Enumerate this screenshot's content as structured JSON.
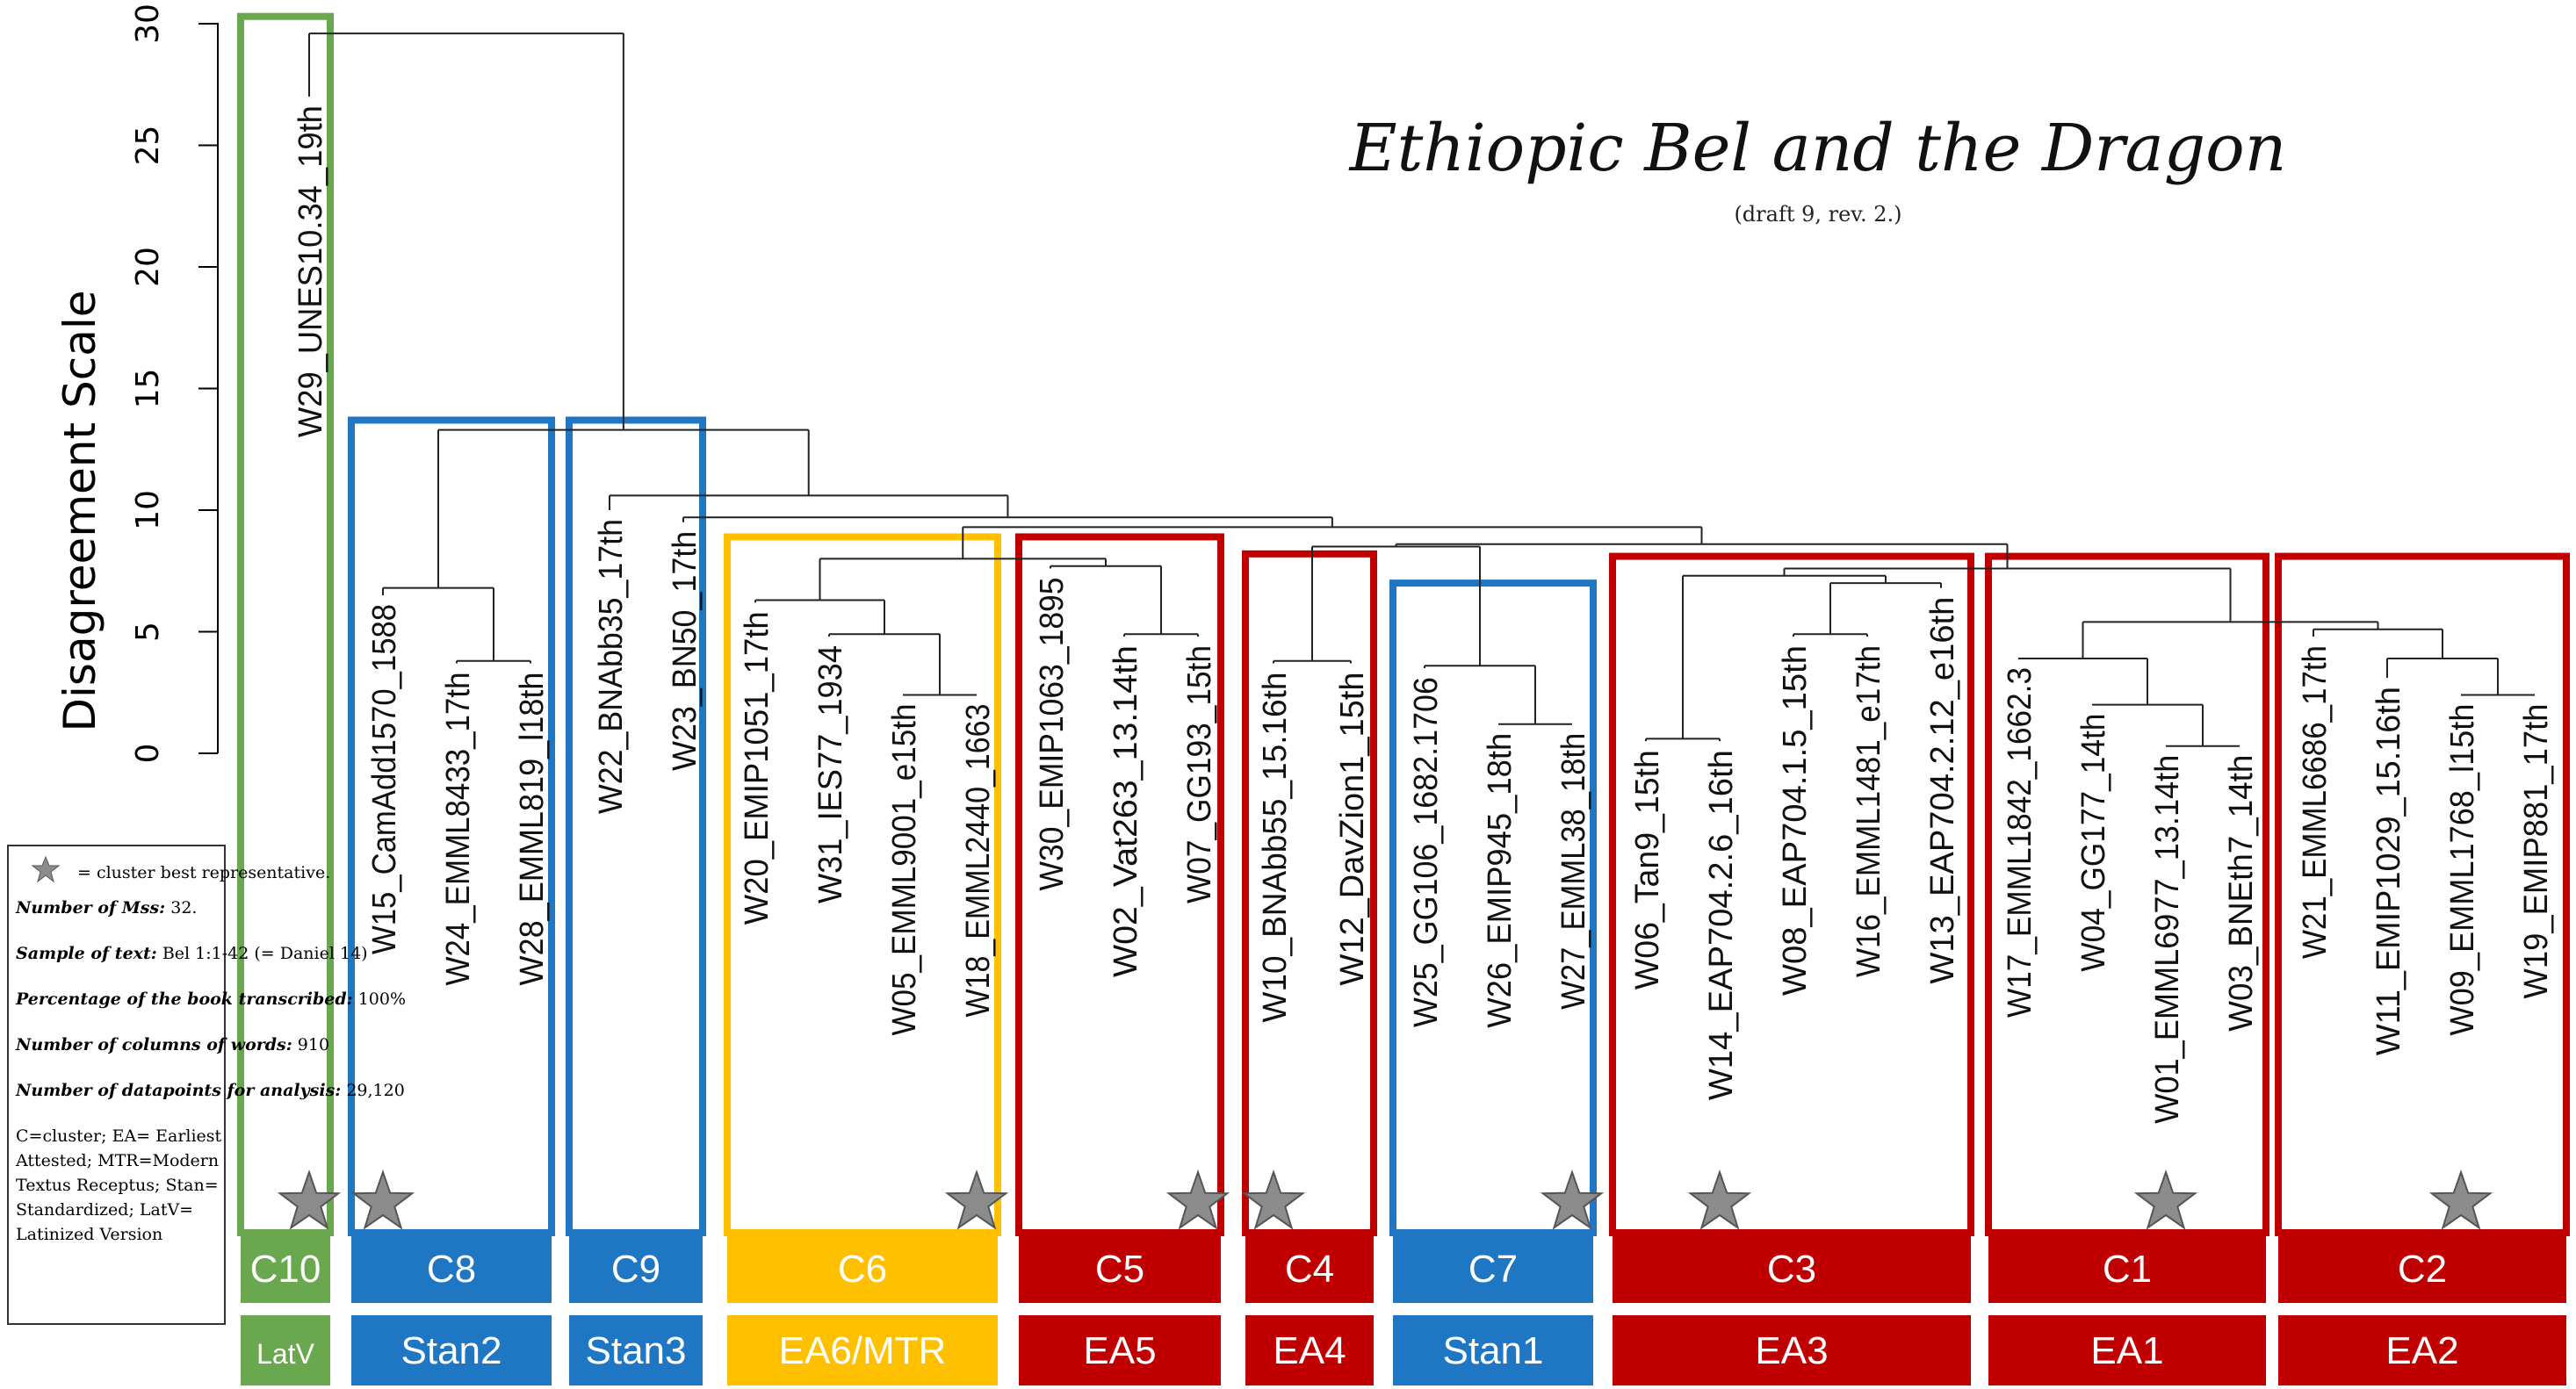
{
  "title": "Ethiopic Bel and the Dragon",
  "subtitle": "(draft 9, rev. 2.)",
  "y_axis": {
    "label": "Disagreement Scale",
    "ticks": [
      0,
      5,
      10,
      15,
      20,
      25,
      30
    ],
    "range": [
      0,
      30
    ]
  },
  "leaves": [
    {
      "id": "w29",
      "label": "W29_UNES10.34_19th",
      "height": 27
    },
    {
      "id": "w15",
      "label": "W15_CamAdd1570_1588",
      "height": 6.5
    },
    {
      "id": "w24",
      "label": "W24_EMML8433_17th",
      "height": 3.7
    },
    {
      "id": "w28",
      "label": "W28_EMML819_l18th",
      "height": 3.7
    },
    {
      "id": "w22",
      "label": "W22_BNAbb35_17th",
      "height": 10
    },
    {
      "id": "w23",
      "label": "W23_BN50_17th",
      "height": 9.5
    },
    {
      "id": "w20",
      "label": "W20_EMIP1051_17th",
      "height": 6.2
    },
    {
      "id": "w31",
      "label": "W31_IES77_1934",
      "height": 4.8
    },
    {
      "id": "w05",
      "label": "W05_EMML9001_e15th",
      "height": 2.4
    },
    {
      "id": "w18",
      "label": "W18_EMML2440_1663",
      "height": 2.4
    },
    {
      "id": "w30",
      "label": "W30_EMIP1063_1895",
      "height": 7.6
    },
    {
      "id": "w02",
      "label": "W02_Vat263_13.14th",
      "height": 4.8
    },
    {
      "id": "w07",
      "label": "W07_GG193_15th",
      "height": 4.8
    },
    {
      "id": "w10",
      "label": "W10_BNAbb55_15.16th",
      "height": 3.7
    },
    {
      "id": "w12",
      "label": "W12_DavZion1_15th",
      "height": 3.7
    },
    {
      "id": "w25",
      "label": "W25_GG106_1682.1706",
      "height": 3.5
    },
    {
      "id": "w26",
      "label": "W26_EMIP945_18th",
      "height": 1.2
    },
    {
      "id": "w27",
      "label": "W27_EMML38_18th",
      "height": 1.2
    },
    {
      "id": "w06",
      "label": "W06_Tan9_15th",
      "height": 0.5
    },
    {
      "id": "w14",
      "label": "W14_EAP704.2.6_16th",
      "height": 0.5
    },
    {
      "id": "w08",
      "label": "W08_EAP704.1.5_15th",
      "height": 4.8
    },
    {
      "id": "w16",
      "label": "W16_EMML1481_e17th",
      "height": 4.8
    },
    {
      "id": "w13",
      "label": "W13_EAP704.2.12_e16th",
      "height": 6.8
    },
    {
      "id": "w17",
      "label": "W17_EMML1842_1662.3",
      "height": 3.9
    },
    {
      "id": "w04",
      "label": "W04_GG177_14th",
      "height": 2.0
    },
    {
      "id": "w01",
      "label": "W01_EMML6977_13.14th",
      "height": 0.3
    },
    {
      "id": "w03",
      "label": "W03_BNEth7_14th",
      "height": 0.3
    },
    {
      "id": "w21",
      "label": "W21_EMML6686_17th",
      "height": 4.8
    },
    {
      "id": "w11",
      "label": "W11_EMIP1029_15.16th",
      "height": 3.1
    },
    {
      "id": "w09",
      "label": "W09_EMML1768_l15th",
      "height": 2.4
    },
    {
      "id": "w19",
      "label": "W19_EMIP881_17th",
      "height": 2.4
    }
  ],
  "merges": [
    {
      "id": "m_24_28",
      "children": [
        "w24",
        "w28"
      ],
      "height": 3.8
    },
    {
      "id": "m_c8",
      "children": [
        "w15",
        "m_24_28"
      ],
      "height": 6.8
    },
    {
      "id": "m_05_18",
      "children": [
        "w05",
        "w18"
      ],
      "height": 2.4
    },
    {
      "id": "m_31",
      "children": [
        "w31",
        "m_05_18"
      ],
      "height": 4.9
    },
    {
      "id": "m_20",
      "children": [
        "w20",
        "m_31"
      ],
      "height": 6.3
    },
    {
      "id": "m_02_07",
      "children": [
        "w02",
        "w07"
      ],
      "height": 4.9
    },
    {
      "id": "m_c5",
      "children": [
        "w30",
        "m_02_07"
      ],
      "height": 7.7
    },
    {
      "id": "m_c6c5",
      "children": [
        "m_20",
        "m_c5"
      ],
      "height": 8.0
    },
    {
      "id": "m_c4",
      "children": [
        "w10",
        "w12"
      ],
      "height": 3.8
    },
    {
      "id": "m_26_27",
      "children": [
        "w26",
        "w27"
      ],
      "height": 1.2
    },
    {
      "id": "m_c7",
      "children": [
        "w25",
        "m_26_27"
      ],
      "height": 3.6
    },
    {
      "id": "m_c4c7",
      "children": [
        "m_c4",
        "m_c7"
      ],
      "height": 8.5
    },
    {
      "id": "m_06_14",
      "children": [
        "w06",
        "w14"
      ],
      "height": 0.6
    },
    {
      "id": "m_08_16",
      "children": [
        "w08",
        "w16"
      ],
      "height": 4.9
    },
    {
      "id": "m_13",
      "children": [
        "m_08_16",
        "w13"
      ],
      "height": 7.0
    },
    {
      "id": "m_c3",
      "children": [
        "m_06_14",
        "m_13"
      ],
      "height": 7.3
    },
    {
      "id": "m_01_03",
      "children": [
        "w01",
        "w03"
      ],
      "height": 0.3
    },
    {
      "id": "m_04",
      "children": [
        "w04",
        "m_01_03"
      ],
      "height": 2.0
    },
    {
      "id": "m_c1",
      "children": [
        "w17",
        "m_04"
      ],
      "height": 3.9
    },
    {
      "id": "m_09_19",
      "children": [
        "w09",
        "w19"
      ],
      "height": 2.4
    },
    {
      "id": "m_11",
      "children": [
        "w11",
        "m_09_19"
      ],
      "height": 3.9
    },
    {
      "id": "m_c2",
      "children": [
        "w21",
        "m_11"
      ],
      "height": 5.1
    },
    {
      "id": "m_c1c2",
      "children": [
        "m_c1",
        "m_c2"
      ],
      "height": 5.4
    },
    {
      "id": "m_c3ea",
      "children": [
        "m_c3",
        "m_c1c2"
      ],
      "height": 7.6
    },
    {
      "id": "m_c7ea",
      "children": [
        "m_c4c7",
        "m_c3ea"
      ],
      "height": 8.6
    },
    {
      "id": "m_mid",
      "children": [
        "m_c6c5",
        "m_c7ea"
      ],
      "height": 9.3
    },
    {
      "id": "m_23",
      "children": [
        "w23",
        "m_mid"
      ],
      "height": 9.7
    },
    {
      "id": "m_c9",
      "children": [
        "w22",
        "m_23"
      ],
      "height": 10.6
    },
    {
      "id": "m_c8c9",
      "children": [
        "m_c8",
        "m_c9"
      ],
      "height": 13.3
    },
    {
      "id": "m_root",
      "children": [
        "w29",
        "m_c8c9"
      ],
      "height": 29.6
    }
  ],
  "clusters": [
    {
      "id": "C10",
      "cluster_label": "C10",
      "group_label": "LatV",
      "color": "#6aa84f",
      "leaves": [
        "w29"
      ],
      "star_leaf": "w29",
      "box_top": 30.3
    },
    {
      "id": "C8",
      "cluster_label": "C8",
      "group_label": "Stan2",
      "color": "#1f77c4",
      "leaves": [
        "w15",
        "w24",
        "w28"
      ],
      "star_leaf": "w15",
      "box_top": 13.7
    },
    {
      "id": "C9",
      "cluster_label": "C9",
      "group_label": "Stan3",
      "color": "#1f77c4",
      "leaves": [
        "w22",
        "w23"
      ],
      "star_leaf": null,
      "box_top": 13.7
    },
    {
      "id": "C6",
      "cluster_label": "C6",
      "group_label": "EA6/MTR",
      "color": "#ffc000",
      "leaves": [
        "w20",
        "w31",
        "w05",
        "w18"
      ],
      "star_leaf": "w18",
      "box_top": 8.9
    },
    {
      "id": "C5",
      "cluster_label": "C5",
      "group_label": "EA5",
      "color": "#c00000",
      "leaves": [
        "w30",
        "w02",
        "w07"
      ],
      "star_leaf": "w07",
      "box_top": 8.9
    },
    {
      "id": "C4",
      "cluster_label": "C4",
      "group_label": "EA4",
      "color": "#c00000",
      "leaves": [
        "w10",
        "w12"
      ],
      "star_leaf": "w10",
      "box_top": 8.2
    },
    {
      "id": "C7",
      "cluster_label": "C7",
      "group_label": "Stan1",
      "color": "#1f77c4",
      "leaves": [
        "w25",
        "w26",
        "w27"
      ],
      "star_leaf": "w27",
      "box_top": 7.0
    },
    {
      "id": "C3",
      "cluster_label": "C3",
      "group_label": "EA3",
      "color": "#c00000",
      "leaves": [
        "w06",
        "w14",
        "w08",
        "w16",
        "w13"
      ],
      "star_leaf": "w14",
      "box_top": 8.1
    },
    {
      "id": "C1",
      "cluster_label": "C1",
      "group_label": "EA1",
      "color": "#c00000",
      "leaves": [
        "w17",
        "w04",
        "w01",
        "w03"
      ],
      "star_leaf": "w01",
      "box_top": 8.1
    },
    {
      "id": "C2",
      "cluster_label": "C2",
      "group_label": "EA2",
      "color": "#c00000",
      "leaves": [
        "w21",
        "w11",
        "w09",
        "w19"
      ],
      "star_leaf": "w09",
      "box_top": 8.1
    }
  ],
  "notes": {
    "star_meaning": "= cluster best representative.",
    "lines": [
      {
        "key": "Number of Mss:",
        "value": "32."
      },
      {
        "key": "Sample of text:",
        "value": "Bel 1:1-42 (= Daniel 14)"
      },
      {
        "key": "Percentage of the book transcribed:",
        "value": "100%"
      },
      {
        "key": "Number of columns of words:",
        "value": "910"
      },
      {
        "key": "Number of datapoints for analysis:",
        "value": "29,120"
      }
    ],
    "legend_text": "C=cluster; EA= Earliest Attested; MTR=Modern Textus Receptus; Stan= Standardized; LatV= Latinized Version"
  }
}
